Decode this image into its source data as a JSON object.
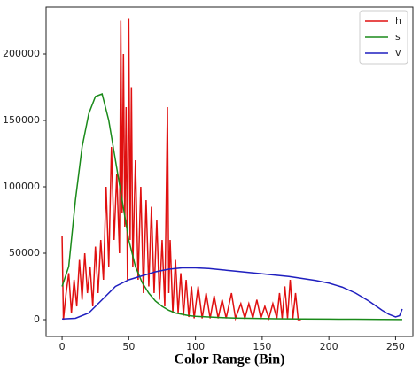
{
  "chart_data": {
    "type": "line",
    "xlabel": "Color Range (Bin)",
    "xlim": [
      -12,
      263
    ],
    "ylim": [
      -12667,
      235333
    ],
    "xticks": [
      0,
      50,
      100,
      150,
      200,
      250
    ],
    "yticks": [
      0,
      50000,
      100000,
      150000,
      200000
    ],
    "legend": "upper right",
    "series": [
      {
        "name": "h",
        "color": "#e01010",
        "x": [
          0,
          1,
          3,
          5,
          7,
          9,
          11,
          13,
          15,
          17,
          19,
          21,
          23,
          25,
          27,
          29,
          31,
          33,
          35,
          37,
          39,
          41,
          43,
          44,
          45,
          46,
          47,
          48,
          49,
          50,
          51,
          52,
          53,
          55,
          57,
          59,
          61,
          63,
          65,
          67,
          69,
          71,
          73,
          75,
          77,
          79,
          80,
          81,
          83,
          85,
          87,
          89,
          91,
          93,
          95,
          97,
          99,
          102,
          105,
          108,
          111,
          114,
          117,
          120,
          123,
          127,
          130,
          134,
          137,
          140,
          143,
          146,
          149,
          152,
          155,
          158,
          161,
          163,
          165,
          167,
          169,
          171,
          173,
          175,
          177,
          179
        ],
        "values": [
          63000,
          0,
          20000,
          35000,
          5000,
          30000,
          10000,
          45000,
          15000,
          50000,
          20000,
          40000,
          10000,
          55000,
          20000,
          60000,
          30000,
          100000,
          40000,
          130000,
          60000,
          110000,
          50000,
          225000,
          80000,
          200000,
          70000,
          160000,
          30000,
          227000,
          60000,
          175000,
          40000,
          120000,
          30000,
          100000,
          20000,
          90000,
          25000,
          85000,
          20000,
          75000,
          15000,
          60000,
          10000,
          160000,
          20000,
          60000,
          5000,
          45000,
          5000,
          35000,
          3000,
          30000,
          2000,
          25000,
          1000,
          25000,
          1000,
          20000,
          1000,
          18000,
          1000,
          15000,
          1000,
          20000,
          1000,
          12000,
          1000,
          12000,
          1000,
          15000,
          1000,
          10000,
          1000,
          12000,
          1000,
          20000,
          1000,
          25000,
          1000,
          30000,
          1000,
          20000,
          0,
          0
        ]
      },
      {
        "name": "s",
        "color": "#1a8a1a",
        "x": [
          0,
          5,
          10,
          15,
          20,
          25,
          30,
          35,
          40,
          45,
          50,
          55,
          60,
          65,
          70,
          75,
          80,
          85,
          90,
          95,
          100,
          110,
          120,
          130,
          140,
          150,
          160,
          170,
          180,
          200,
          220,
          240,
          255
        ],
        "values": [
          25000,
          40000,
          90000,
          130000,
          155000,
          168000,
          170000,
          150000,
          120000,
          90000,
          60000,
          40000,
          28000,
          20000,
          14000,
          10000,
          7000,
          5000,
          4000,
          3000,
          2500,
          2000,
          1500,
          1200,
          1000,
          800,
          700,
          600,
          500,
          400,
          300,
          200,
          100
        ]
      },
      {
        "name": "v",
        "color": "#1f1fbf",
        "x": [
          0,
          10,
          20,
          30,
          40,
          50,
          60,
          70,
          80,
          90,
          100,
          110,
          120,
          130,
          140,
          150,
          160,
          170,
          180,
          190,
          200,
          210,
          220,
          230,
          240,
          245,
          250,
          253,
          255
        ],
        "values": [
          500,
          1000,
          5000,
          15000,
          25000,
          30000,
          33000,
          36000,
          38000,
          39000,
          39000,
          38500,
          37500,
          36500,
          35500,
          34500,
          33500,
          32500,
          31000,
          29500,
          27500,
          24500,
          20000,
          14000,
          7000,
          4000,
          2000,
          3000,
          8000
        ]
      }
    ]
  }
}
